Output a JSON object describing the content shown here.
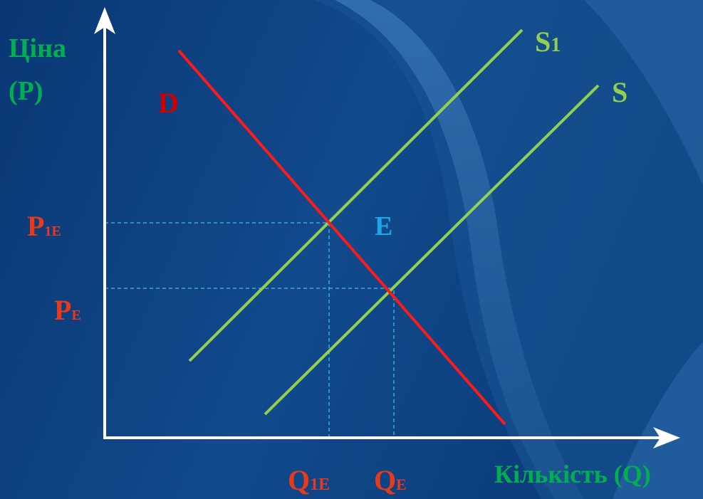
{
  "colors": {
    "background_dark": "#0b3a78",
    "background_light": "#2f6aa8",
    "axis": "#ffffff",
    "demand": "#ff1a1a",
    "supply": "#92d050",
    "axis_label": "#00b050",
    "price_quantity_label": "#e8391d",
    "equilibrium_label": "#1ea7e8",
    "guide": "#3cc0e6"
  },
  "axis_labels": {
    "price_line1": "Ціна",
    "price_line2": "(P)",
    "quantity": "Кількість (Q)"
  },
  "curves": {
    "demand": "D",
    "supply_original": "S",
    "supply_shifted": "S",
    "supply_shifted_sub": "1"
  },
  "points": {
    "equilibrium": "E",
    "price_shifted_main": "P",
    "price_shifted_sub": "1E",
    "price_original_main": "P",
    "price_original_sub": "E",
    "quantity_shifted_main": "Q",
    "quantity_shifted_sub": "1E",
    "quantity_original_main": "Q",
    "quantity_original_sub": "E"
  }
}
